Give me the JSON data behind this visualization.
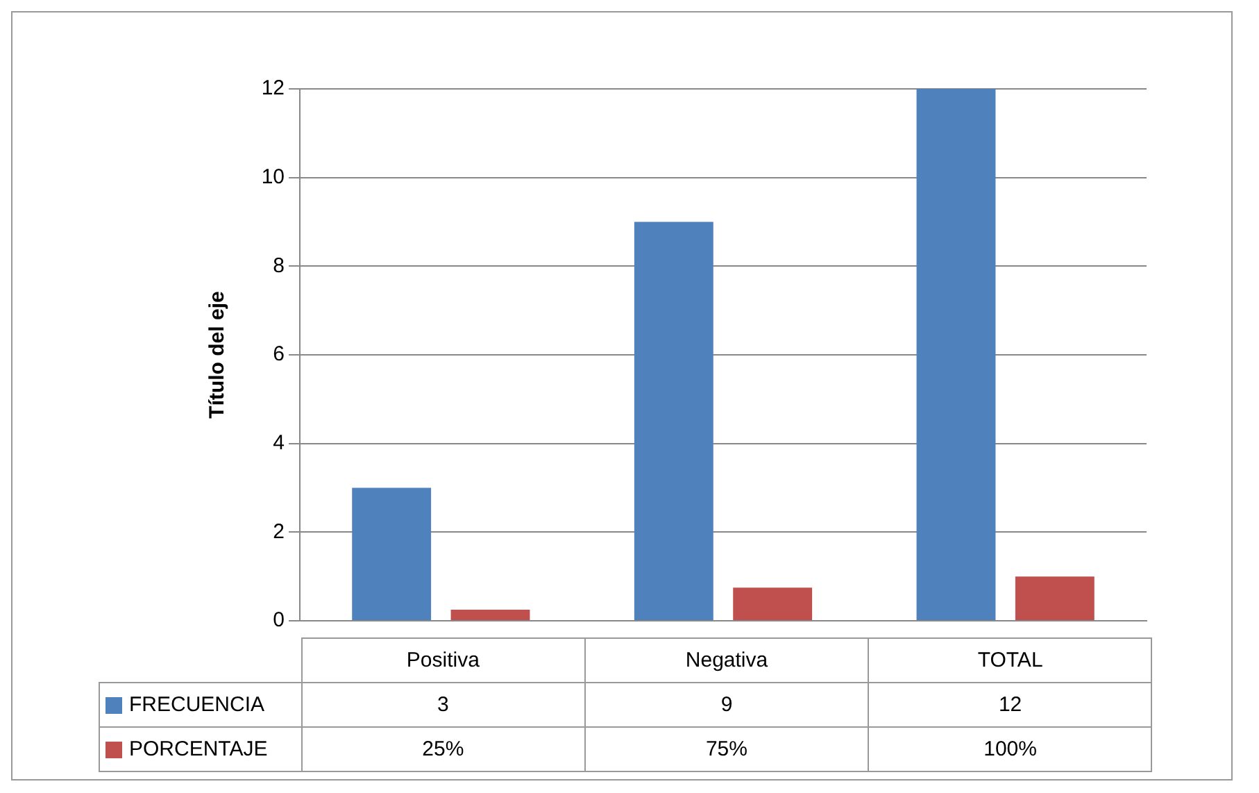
{
  "chart_data": {
    "type": "bar",
    "ylabel": "Título del eje",
    "categories": [
      "Positiva",
      "Negativa",
      "TOTAL"
    ],
    "series": [
      {
        "name": "FRECUENCIA",
        "color": "#4f81bd",
        "values": [
          3,
          9,
          12
        ],
        "value_labels": [
          "3",
          "9",
          "12"
        ]
      },
      {
        "name": "PORCENTAJE",
        "color": "#c0504d",
        "values": [
          0.25,
          0.75,
          1
        ],
        "value_labels": [
          "25%",
          "75%",
          "100%"
        ]
      }
    ],
    "ylim": [
      0,
      12
    ],
    "yticks": [
      0,
      2,
      4,
      6,
      8,
      10,
      12
    ],
    "grid": "y",
    "legend": "bottom"
  }
}
